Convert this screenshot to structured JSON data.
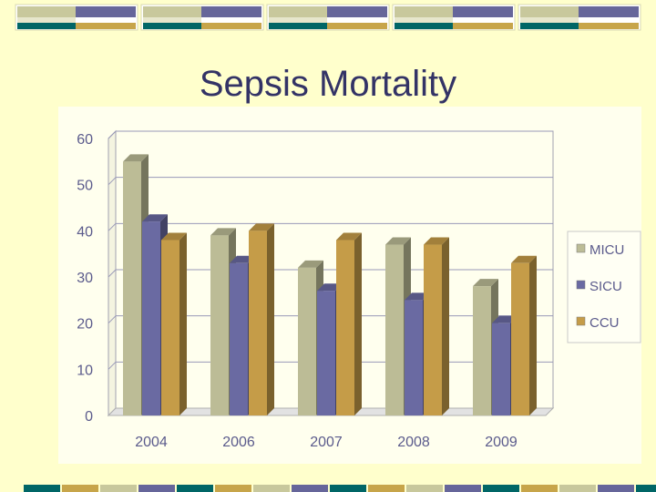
{
  "slide": {
    "title": "Sepsis Mortality"
  },
  "colors": {
    "background": "#FFFFCC",
    "plot_area": "#FFFFEE",
    "teal": "#006666",
    "khaki": "#C8C89C",
    "purple": "#66669A",
    "gold": "#C7A54A"
  },
  "chart_data": {
    "type": "bar",
    "title": "Sepsis Mortality",
    "xlabel": "",
    "ylabel": "",
    "categories": [
      "2004",
      "2006",
      "2007",
      "2008",
      "2009"
    ],
    "series": [
      {
        "name": "MICU",
        "color": "#BCBC96",
        "values": [
          55,
          39,
          32,
          37,
          28
        ]
      },
      {
        "name": "SICU",
        "color": "#6A6AA2",
        "values": [
          42,
          33,
          27,
          25,
          20
        ]
      },
      {
        "name": "CCU",
        "color": "#C59C48",
        "values": [
          38,
          40,
          38,
          37,
          33
        ]
      }
    ],
    "ylim": [
      0,
      60
    ],
    "yticks": [
      0,
      10,
      20,
      30,
      40,
      50,
      60
    ],
    "grid": true,
    "legend": "right"
  }
}
